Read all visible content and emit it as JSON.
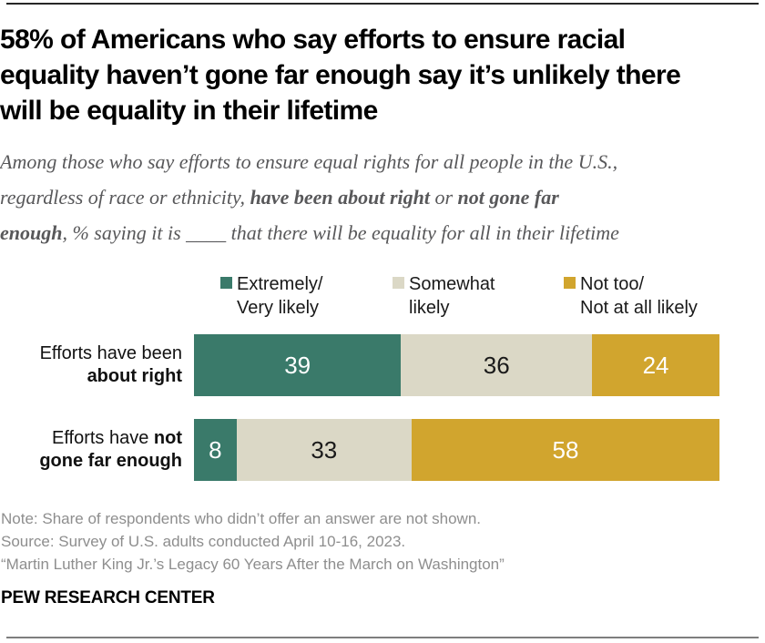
{
  "header": {
    "title_lines": [
      "58% of Americans who say efforts to ensure racial",
      "equality haven’t gone far enough say it’s unlikely there",
      "will be equality in their lifetime"
    ],
    "subtitle_lines": [
      [
        {
          "t": "Among those who say efforts to ensure equal rights for all people in the U.S.,"
        }
      ],
      [
        {
          "t": "regardless of race or ethnicity, "
        },
        {
          "t": "have been about right",
          "b": true
        },
        {
          "t": " or "
        },
        {
          "t": "not gone far",
          "b": true
        }
      ],
      [
        {
          "t": "enough",
          "b": true
        },
        {
          "t": ", % saying it is ____ that there will be equality for all in their lifetime"
        }
      ]
    ]
  },
  "legend": {
    "items": [
      {
        "line1": "Extremely/",
        "line2": "Very likely",
        "color": "#3a7a6a",
        "swatch": "green-square-icon"
      },
      {
        "line1": "Somewhat",
        "line2": "likely",
        "color": "#dbd8c6",
        "swatch": "beige-square-icon"
      },
      {
        "line1": "Not too/",
        "line2": "Not at all likely",
        "color": "#d1a52e",
        "swatch": "gold-square-icon"
      }
    ]
  },
  "rows": [
    {
      "label_lines": [
        [
          {
            "t": "Efforts have been"
          }
        ],
        [
          {
            "t": "about right",
            "b": true
          }
        ]
      ]
    },
    {
      "label_lines": [
        [
          {
            "t": "Efforts have "
          },
          {
            "t": "not",
            "b": true
          }
        ],
        [
          {
            "t": "gone far enough",
            "b": true
          }
        ]
      ]
    }
  ],
  "chart_data": {
    "type": "bar",
    "orientation": "horizontal",
    "stacked": true,
    "units": "%",
    "axis": "hidden",
    "categories": [
      "Efforts have been about right",
      "Efforts have not gone far enough"
    ],
    "series": [
      {
        "name": "Extremely/Very likely",
        "color": "#3a7a6a",
        "text_color": "#ffffff",
        "values": [
          39,
          8
        ]
      },
      {
        "name": "Somewhat likely",
        "color": "#dbd8c6",
        "text_color": "#1a1a1a",
        "values": [
          36,
          33
        ]
      },
      {
        "name": "Not too/Not at all likely",
        "color": "#d1a52e",
        "text_color": "#ffffff",
        "values": [
          24,
          58
        ]
      }
    ],
    "title": "58% of Americans who say efforts to ensure racial equality haven’t gone far enough say it’s unlikely there will be equality in their lifetime",
    "legend_position": "top"
  },
  "footer": {
    "note": "Note: Share of respondents who didn’t offer an answer are not shown.",
    "source": "Source: Survey of U.S. adults conducted April 10-16, 2023.",
    "report": "“Martin Luther King Jr.’s Legacy 60 Years After the March on Washington”",
    "brand": "PEW RESEARCH CENTER"
  }
}
